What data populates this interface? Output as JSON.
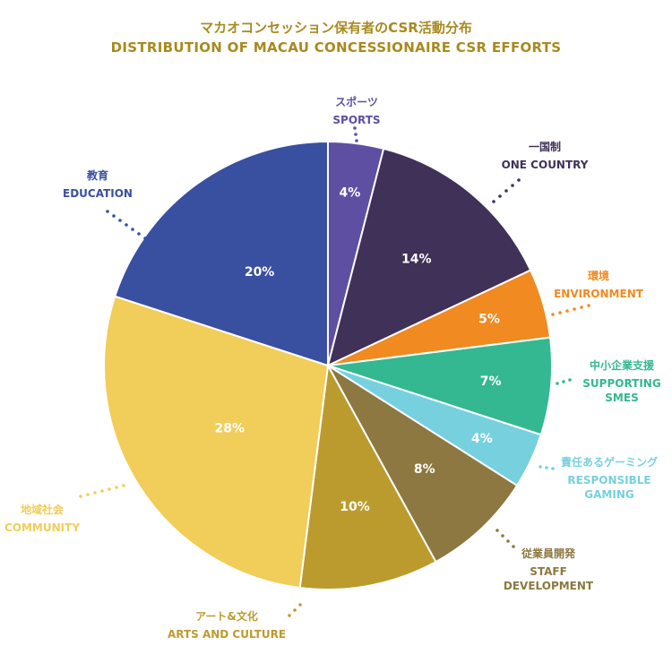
{
  "title_jp": "マカオコンセッション保有者のCSR活動分布",
  "title_en": "DISTRIBUTION OF MACAU CONCESSIONAIRE CSR EFFORTS",
  "chart_data": {
    "type": "pie",
    "slices": [
      {
        "jp": "スポーツ",
        "en": [
          "SPORTS"
        ],
        "value": 4,
        "pct_label": "4%",
        "color": "#5e4fa3"
      },
      {
        "jp": "一国制",
        "en": [
          "ONE COUNTRY"
        ],
        "value": 14,
        "pct_label": "14%",
        "color": "#3f3157"
      },
      {
        "jp": "環境",
        "en": [
          "ENVIRONMENT"
        ],
        "value": 5,
        "pct_label": "5%",
        "color": "#f08a21"
      },
      {
        "jp": "中小企業支援",
        "en": [
          "SUPPORTING",
          "SMES"
        ],
        "value": 7,
        "pct_label": "7%",
        "color": "#33b891"
      },
      {
        "jp": "責任あるゲーミング",
        "en": [
          "RESPONSIBLE",
          "GAMING"
        ],
        "value": 4,
        "pct_label": "4%",
        "color": "#77d0de"
      },
      {
        "jp": "従業員開発",
        "en": [
          "STAFF",
          "DEVELOPMENT"
        ],
        "value": 8,
        "pct_label": "8%",
        "color": "#8c7840"
      },
      {
        "jp": "アート&文化",
        "en": [
          "ARTS AND CULTURE"
        ],
        "value": 10,
        "pct_label": "10%",
        "color": "#bc9b2e"
      },
      {
        "jp": "地域社会",
        "en": [
          "COMMUNITY"
        ],
        "value": 28,
        "pct_label": "28%",
        "color": "#f1cd59"
      },
      {
        "jp": "教育",
        "en": [
          "EDUCATION"
        ],
        "value": 20,
        "pct_label": "20%",
        "color": "#394fa0"
      }
    ]
  }
}
